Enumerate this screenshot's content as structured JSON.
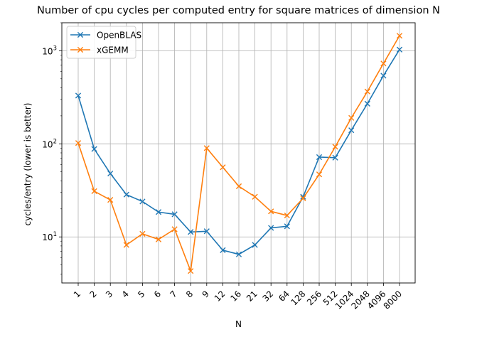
{
  "chart_data": {
    "type": "line",
    "title": "Number of cpu cycles per computed entry for square matrices of dimension N",
    "xlabel": "N",
    "ylabel": "cycles/entry (lower is better)",
    "yscale": "log",
    "ylim": [
      3.2,
      2000
    ],
    "grid": true,
    "legend_position": "top-left",
    "categories": [
      "1",
      "2",
      "3",
      "4",
      "5",
      "6",
      "7",
      "8",
      "9",
      "12",
      "16",
      "21",
      "32",
      "64",
      "128",
      "256",
      "512",
      "1024",
      "2048",
      "4096",
      "8000"
    ],
    "y_ticks": [
      {
        "value": 10,
        "base": "10",
        "exp": "1"
      },
      {
        "value": 100,
        "base": "10",
        "exp": "2"
      },
      {
        "value": 1000,
        "base": "10",
        "exp": "3"
      }
    ],
    "series": [
      {
        "name": "OpenBLAS",
        "color": "#1f77b4",
        "marker": "x",
        "values": [
          330,
          88,
          48,
          28.5,
          24,
          18.5,
          17.5,
          11.3,
          11.5,
          7.2,
          6.5,
          8.2,
          12.5,
          13.0,
          27,
          72,
          71,
          140,
          270,
          540,
          1030
        ]
      },
      {
        "name": "xGEMM",
        "color": "#ff7f0e",
        "marker": "x",
        "values": [
          102,
          31,
          25,
          8.2,
          10.8,
          9.4,
          12.1,
          4.3,
          90,
          56,
          35,
          27,
          18.8,
          17,
          26,
          47,
          93,
          190,
          365,
          730,
          1450
        ]
      }
    ]
  }
}
